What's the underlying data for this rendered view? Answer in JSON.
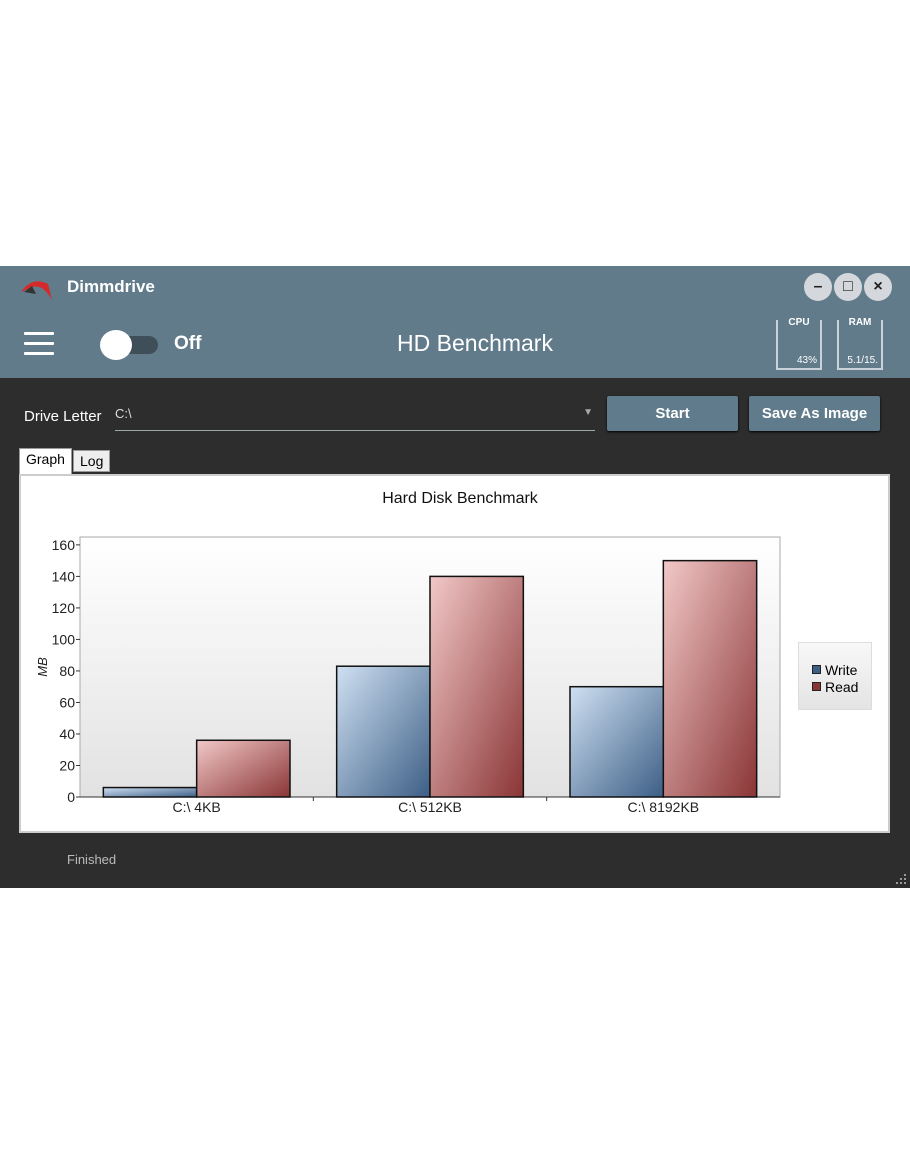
{
  "app": {
    "name": "Dimmdrive",
    "page_title": "HD Benchmark",
    "toggle_label": "Off",
    "toggle_on": false
  },
  "window_buttons": {
    "minimize": "–",
    "maximize": "□",
    "close": "×"
  },
  "meters": {
    "cpu": {
      "label": "CPU",
      "value": "43%"
    },
    "ram": {
      "label": "RAM",
      "value": "5.1/15."
    }
  },
  "form": {
    "drive_label": "Drive Letter",
    "drive_value": "C:\\",
    "start": "Start",
    "save": "Save As Image"
  },
  "tabs": [
    "Graph",
    "Log"
  ],
  "status": "Finished",
  "chart_data": {
    "type": "bar",
    "title": "Hard Disk Benchmark",
    "ylabel": "MB",
    "xlabel": "",
    "ylim": [
      0,
      165
    ],
    "yticks": [
      0,
      20,
      40,
      60,
      80,
      100,
      120,
      140,
      160
    ],
    "categories": [
      "C:\\ 4KB",
      "C:\\ 512KB",
      "C:\\ 8192KB"
    ],
    "series": [
      {
        "name": "Write",
        "values": [
          6,
          83,
          70
        ],
        "color": "#3d5f86"
      },
      {
        "name": "Read",
        "values": [
          36,
          140,
          150
        ],
        "color": "#8a3535"
      }
    ],
    "legend": "right"
  }
}
